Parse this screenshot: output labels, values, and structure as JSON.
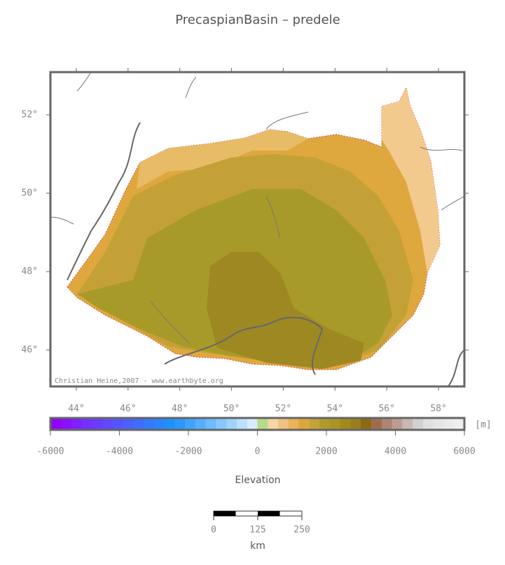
{
  "title": "PrecaspianBasin – predele",
  "map": {
    "lon_lim": [
      43,
      59
    ],
    "lat_lim": [
      45.07,
      53.09
    ],
    "lon_ticks": [
      {
        "value": 44,
        "label": "44°"
      },
      {
        "value": 46,
        "label": "46°"
      },
      {
        "value": 48,
        "label": "48°"
      },
      {
        "value": 50,
        "label": "50°"
      },
      {
        "value": 52,
        "label": "52°"
      },
      {
        "value": 54,
        "label": "54°"
      },
      {
        "value": 56,
        "label": "56°"
      },
      {
        "value": 58,
        "label": "58°"
      }
    ],
    "lat_ticks": [
      {
        "value": 46,
        "label": "46°"
      },
      {
        "value": 48,
        "label": "48°"
      },
      {
        "value": 50,
        "label": "50°"
      },
      {
        "value": 52,
        "label": "52°"
      }
    ],
    "credit": "Christian Heine,2007 - www.earthbyte.org"
  },
  "colorbar": {
    "label": "Elevation",
    "unit": "[m]",
    "lim": [
      -6000,
      6000
    ],
    "ticks": [
      -6000,
      -4000,
      -2000,
      0,
      2000,
      4000,
      6000
    ],
    "colors": [
      "#9400ff",
      "#8a10ff",
      "#7f20ff",
      "#7530ff",
      "#6a3cff",
      "#6048ff",
      "#5454ff",
      "#4a60ff",
      "#406cff",
      "#3478ff",
      "#2a84ff",
      "#1f90ff",
      "#2a98ff",
      "#40a4ff",
      "#56b0ff",
      "#6cbcff",
      "#86c8ff",
      "#a0d4ff",
      "#bce0ff",
      "#d8ecff",
      "#b4dc8a",
      "#f6d6a6",
      "#f0c282",
      "#e8b45a",
      "#dea63a",
      "#c6a238",
      "#b09a2e",
      "#a89624",
      "#a08a1e",
      "#987e1a",
      "#8c6a12",
      "#a06c50",
      "#b08474",
      "#bc9c94",
      "#c8b8b4",
      "#d4d0d0",
      "#e0e0e0",
      "#e6e6e6",
      "#ebebeb",
      "#eeeeee"
    ]
  },
  "scale_bar": {
    "ticks": [
      0,
      125,
      250
    ],
    "unit": "km"
  }
}
